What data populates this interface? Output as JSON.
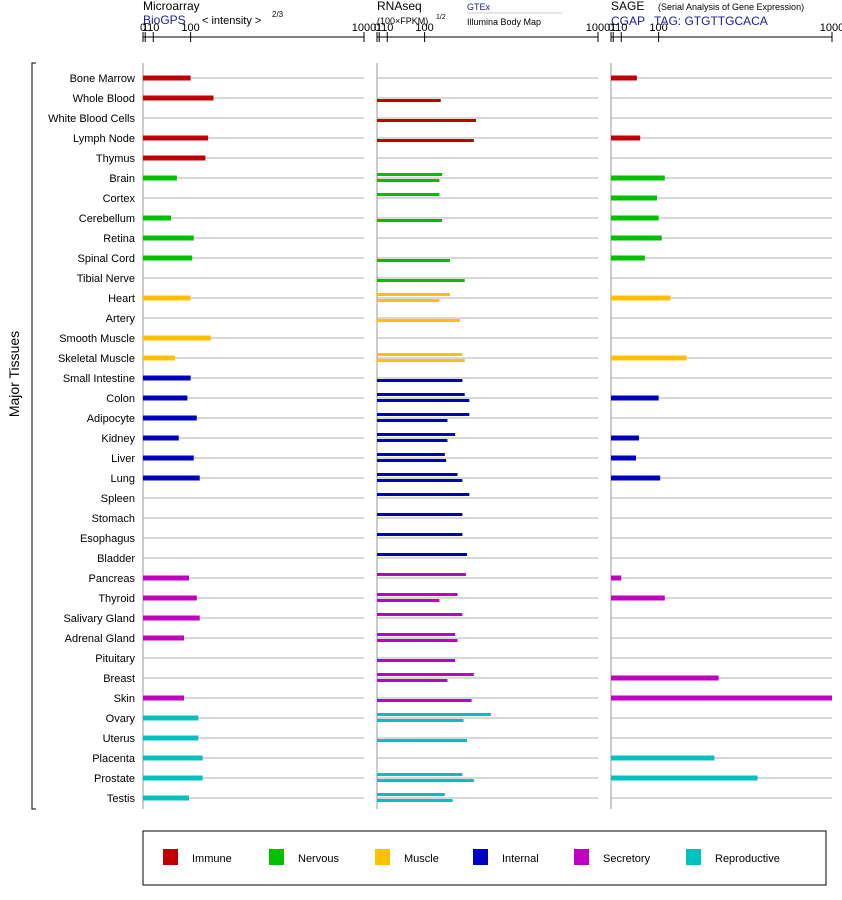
{
  "chart_data": {
    "type": "bar",
    "y_title": "Major Tissues",
    "tissues": [
      "Bone Marrow",
      "Whole Blood",
      "White Blood Cells",
      "Lymph Node",
      "Thymus",
      "Brain",
      "Cortex",
      "Cerebellum",
      "Retina",
      "Spinal Cord",
      "Tibial Nerve",
      "Heart",
      "Artery",
      "Smooth Muscle",
      "Skeletal Muscle",
      "Small Intestine",
      "Colon",
      "Adipocyte",
      "Kidney",
      "Liver",
      "Lung",
      "Spleen",
      "Stomach",
      "Esophagus",
      "Bladder",
      "Pancreas",
      "Thyroid",
      "Salivary Gland",
      "Adrenal Gland",
      "Pituitary",
      "Breast",
      "Skin",
      "Ovary",
      "Uterus",
      "Placenta",
      "Prostate",
      "Testis"
    ],
    "tissue_groups": [
      "Immune",
      "Immune",
      "Immune",
      "Immune",
      "Immune",
      "Nervous",
      "Nervous",
      "Nervous",
      "Nervous",
      "Nervous",
      "Nervous",
      "Muscle",
      "Muscle",
      "Muscle",
      "Muscle",
      "Internal",
      "Internal",
      "Internal",
      "Internal",
      "Internal",
      "Internal",
      "Internal",
      "Internal",
      "Internal",
      "Internal",
      "Secretory",
      "Secretory",
      "Secretory",
      "Secretory",
      "Secretory",
      "Secretory",
      "Secretory",
      "Reproductive",
      "Reproductive",
      "Reproductive",
      "Reproductive",
      "Reproductive"
    ],
    "colors": {
      "Immune": "#c00000",
      "Nervous": "#00c000",
      "Muscle": "#ffc000",
      "Internal": "#0000c0",
      "Secretory": "#c000c0",
      "Reproductive": "#00c0c0"
    },
    "legend": {
      "position": "bottom",
      "entries": [
        "Immune",
        "Nervous",
        "Muscle",
        "Internal",
        "Secretory",
        "Reproductive"
      ]
    },
    "panels": [
      {
        "key": "microarray",
        "title": "Microarray",
        "source": "BioGPS",
        "scale_label": "< intensity >",
        "scale_exponent": "2/3",
        "ticks": [
          "0",
          "1",
          "10",
          "100",
          "1000"
        ],
        "values": [
          100,
          180,
          null,
          160,
          150,
          60,
          null,
          45,
          110,
          105,
          null,
          100,
          null,
          170,
          55,
          100,
          90,
          120,
          65,
          110,
          130,
          null,
          null,
          null,
          null,
          95,
          120,
          130,
          80,
          null,
          null,
          80,
          125,
          125,
          140,
          140,
          95
        ]
      },
      {
        "key": "rnaseq",
        "title": "RNAseq",
        "subtitle": "(100×FPKM)",
        "subtitle_exponent": "1/2",
        "legend_top": "GTEx",
        "legend_bottom": "Illumina Body Map",
        "ticks": [
          "0",
          "1",
          "10",
          "100",
          "1000"
        ],
        "values_top": [
          null,
          null,
          null,
          null,
          null,
          160,
          150,
          null,
          null,
          null,
          null,
          190,
          null,
          null,
          240,
          null,
          250,
          270,
          210,
          170,
          220,
          270,
          240,
          240,
          260,
          255,
          220,
          240,
          210,
          null,
          290,
          null,
          370,
          null,
          null,
          240,
          170
        ],
        "values_bottom": [
          null,
          155,
          300,
          290,
          null,
          150,
          null,
          160,
          null,
          190,
          250,
          150,
          230,
          null,
          250,
          240,
          270,
          180,
          180,
          175,
          240,
          null,
          null,
          null,
          null,
          null,
          150,
          null,
          220,
          210,
          180,
          280,
          245,
          260,
          null,
          290,
          200
        ]
      },
      {
        "key": "sage",
        "title": "SAGE",
        "subtitle": "(Serial Analysis of Gene Expression)",
        "source": "CGAP",
        "tag_label": "TAG: GTGTTGCACA",
        "ticks": [
          "0",
          "1",
          "10",
          "100",
          "1000"
        ],
        "values": [
          40,
          null,
          null,
          48,
          null,
          120,
          95,
          100,
          110,
          60,
          null,
          140,
          null,
          null,
          200,
          null,
          100,
          null,
          45,
          38,
          105,
          null,
          null,
          null,
          null,
          10,
          120,
          null,
          null,
          null,
          340,
          1000,
          null,
          null,
          320,
          540,
          null
        ]
      }
    ]
  }
}
